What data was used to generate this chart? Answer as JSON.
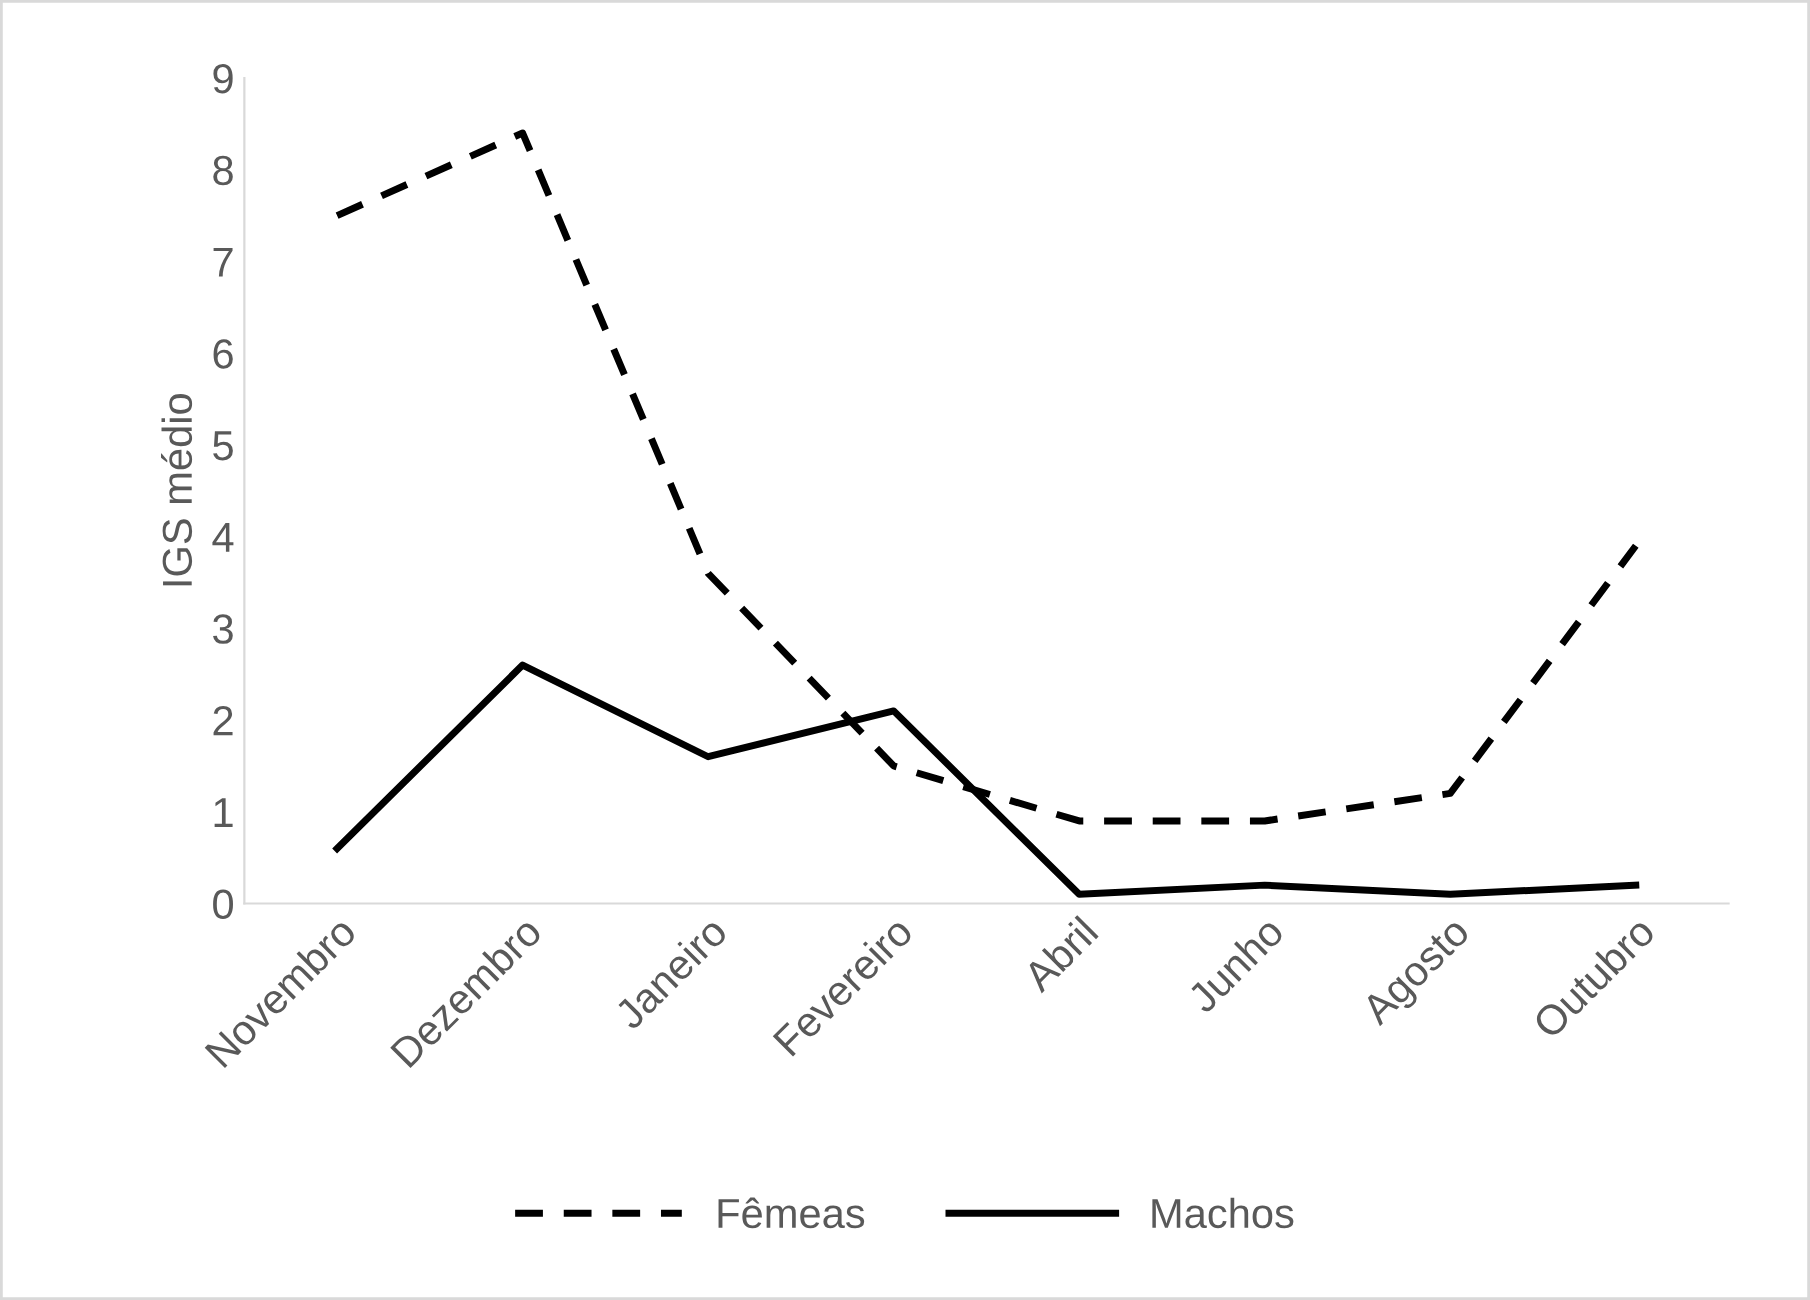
{
  "chart_data": {
    "type": "line",
    "ylabel": "IGS médio",
    "categories": [
      "Novembro",
      "Dezembro",
      "Janeiro",
      "Fevereiro",
      "Abril",
      "Junho",
      "Agosto",
      "Outubro"
    ],
    "series": [
      {
        "name": "Fêmeas",
        "color": "#000000",
        "line_style": "dashed",
        "values": [
          7.5,
          8.4,
          3.6,
          1.5,
          0.9,
          0.9,
          1.2,
          3.9
        ]
      },
      {
        "name": "Machos",
        "color": "#000000",
        "line_style": "solid",
        "values": [
          0.6,
          2.6,
          1.6,
          2.1,
          0.1,
          0.2,
          0.1,
          0.2
        ]
      }
    ],
    "ylim": [
      0,
      9
    ],
    "yticks": [
      0,
      1,
      2,
      3,
      4,
      5,
      6,
      7,
      8,
      9
    ],
    "grid": false,
    "legend": "bottom"
  }
}
